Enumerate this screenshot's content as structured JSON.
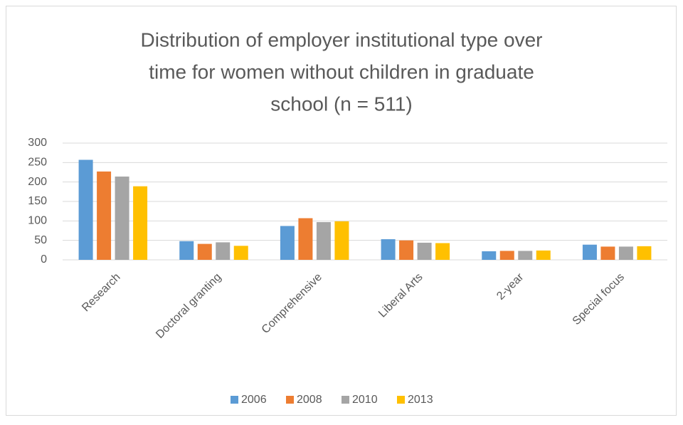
{
  "chart_data": {
    "type": "bar",
    "title_lines": [
      "Distribution of employer institutional type over",
      "time for women without children in graduate",
      "school (n = 511)"
    ],
    "categories": [
      "Research",
      "Doctoral granting",
      "Comprehensive",
      "Liberal Arts",
      "2-year",
      "Special focus"
    ],
    "series": [
      {
        "name": "2006",
        "color": "#5b9bd5",
        "values": [
          257,
          48,
          87,
          53,
          22,
          39
        ]
      },
      {
        "name": "2008",
        "color": "#ed7d31",
        "values": [
          227,
          41,
          107,
          50,
          23,
          34
        ]
      },
      {
        "name": "2010",
        "color": "#a5a5a5",
        "values": [
          214,
          45,
          97,
          44,
          23,
          34
        ]
      },
      {
        "name": "2013",
        "color": "#ffc000",
        "values": [
          189,
          36,
          99,
          43,
          24,
          35
        ]
      }
    ],
    "ylim": [
      0,
      300
    ],
    "yticks": [
      0,
      50,
      100,
      150,
      200,
      250,
      300
    ],
    "grid": true,
    "legend": "bottom"
  }
}
